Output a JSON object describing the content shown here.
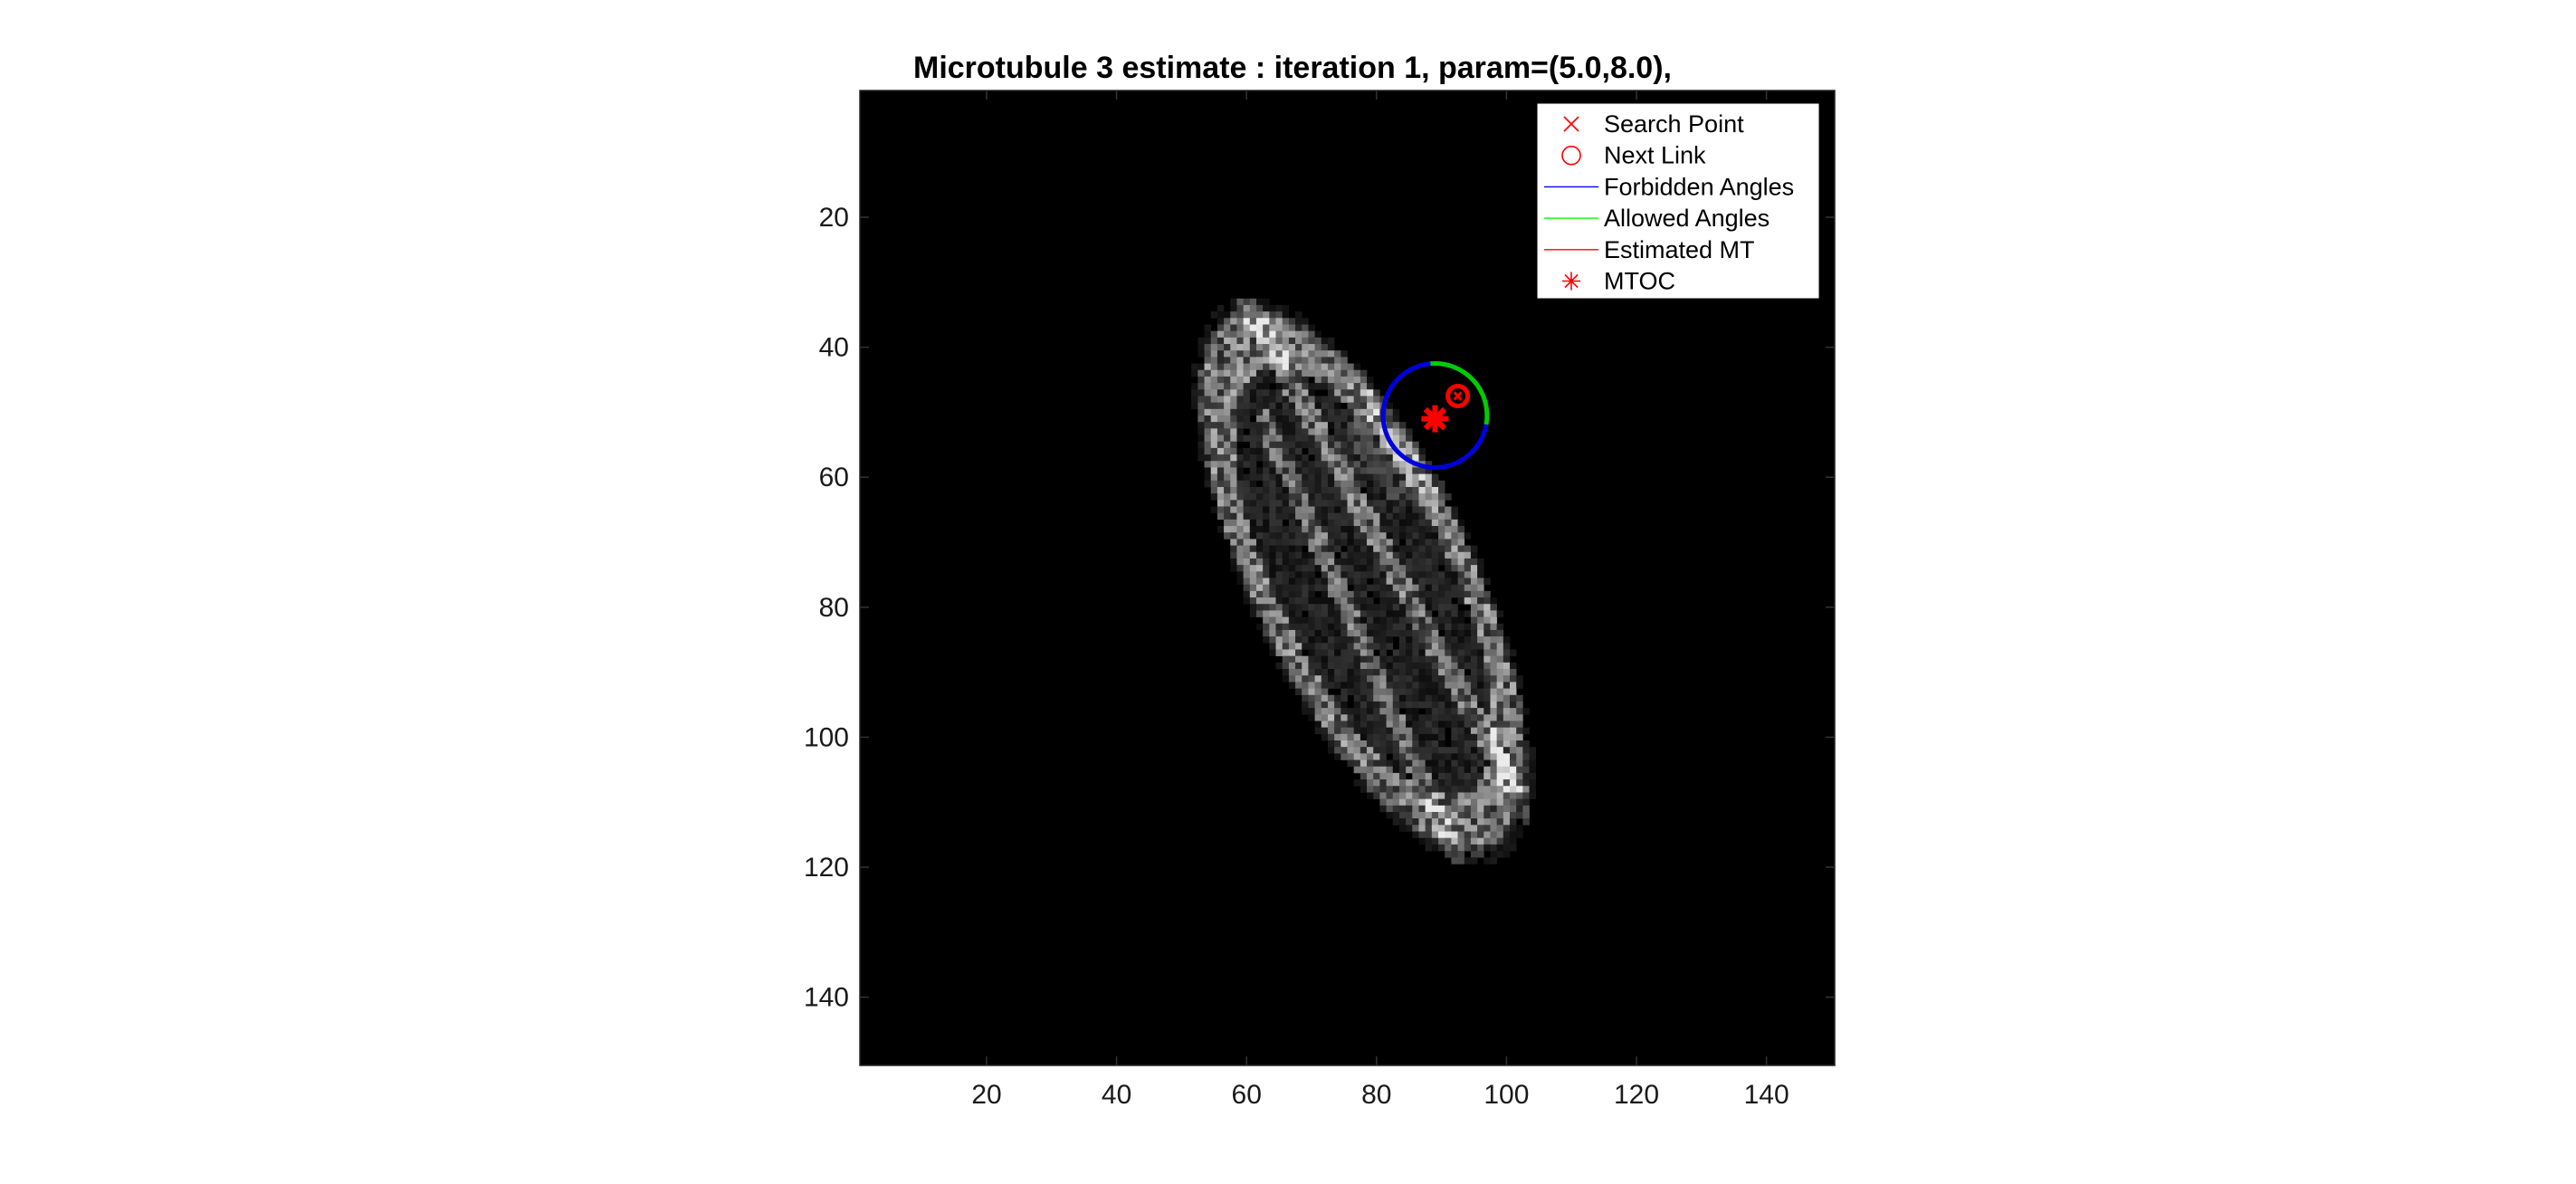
{
  "chart_data": {
    "type": "heatmap",
    "title": "Microtubule 3 estimate : iteration 1, param=(5.0,8.0),",
    "xlabel": "",
    "ylabel": "",
    "xlim": [
      0.5,
      150.5
    ],
    "ylim": [
      0.5,
      150.5
    ],
    "y_reversed": true,
    "x_ticks": [
      20,
      40,
      60,
      80,
      100,
      120,
      140
    ],
    "y_ticks": [
      20,
      40,
      60,
      80,
      100,
      120,
      140
    ],
    "x_tick_labels": [
      "20",
      "40",
      "60",
      "80",
      "100",
      "120",
      "140"
    ],
    "y_tick_labels": [
      "20",
      "40",
      "60",
      "80",
      "100",
      "120",
      "140"
    ],
    "colormap": "gray",
    "background_color": "#000000",
    "image_description_regions": {
      "cell_center": [
        80,
        75
      ],
      "cell_extent_x": [
        44,
        110
      ],
      "cell_extent_y": [
        33,
        118
      ]
    },
    "overlays": {
      "search_circle": {
        "center": [
          89,
          50.5
        ],
        "radius": 8
      },
      "allowed_arc_degrees": [
        -10,
        95
      ],
      "next_link": [
        92.5,
        47.5
      ],
      "mtoc": [
        89,
        51
      ],
      "search_point": [
        92.5,
        47.5
      ]
    },
    "legend": {
      "location": "top-right",
      "entries": [
        {
          "label": "Search Point",
          "marker": "x",
          "color": "#ff0000"
        },
        {
          "label": "Next Link",
          "marker": "circle",
          "color": "#ff0000"
        },
        {
          "label": "Forbidden Angles",
          "marker": "line",
          "color": "#0000ff"
        },
        {
          "label": "Allowed Angles",
          "marker": "line",
          "color": "#00ff00"
        },
        {
          "label": "Estimated MT",
          "marker": "line",
          "color": "#ff0000"
        },
        {
          "label": "MTOC",
          "marker": "asterisk",
          "color": "#ff0000"
        }
      ]
    },
    "colors": {
      "forbidden": "#0000dd",
      "allowed": "#00cc00",
      "marker": "#ff0000"
    }
  }
}
